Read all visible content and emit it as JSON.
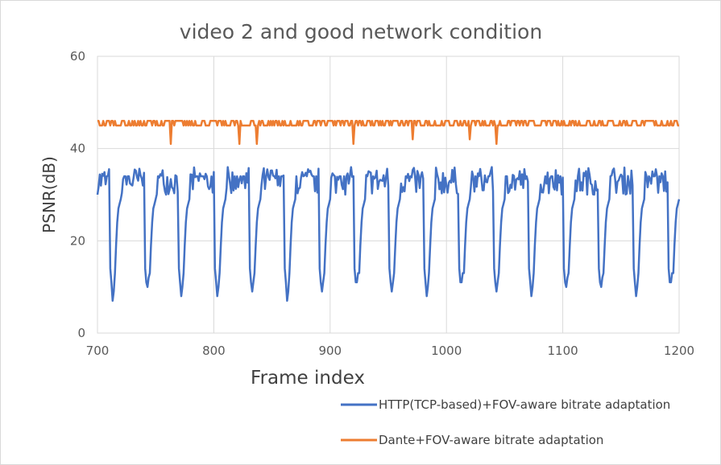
{
  "chart_data": {
    "type": "line",
    "title": "video 2 and good network condition",
    "xlabel": "Frame index",
    "ylabel": "PSNR(dB)",
    "xlim": [
      700,
      1200
    ],
    "ylim": [
      0,
      60
    ],
    "xticks": [
      700,
      800,
      900,
      1000,
      1100,
      1200
    ],
    "yticks": [
      0,
      20,
      40,
      60
    ],
    "grid": true,
    "legend_position": "bottom-right",
    "series": [
      {
        "name": "HTTP(TCP-based)+FOV-aware bitrate adaptation",
        "color": "#4472c4",
        "dip_x": [
          713,
          743,
          772,
          803,
          833,
          863,
          893,
          923,
          953,
          983,
          1013,
          1043,
          1073,
          1103,
          1133,
          1163,
          1193
        ],
        "dip_y": [
          7,
          10,
          8,
          8,
          9,
          7,
          9,
          11,
          9,
          8,
          11,
          9,
          8,
          10,
          10,
          8,
          11
        ],
        "range": [
          26,
          34
        ]
      },
      {
        "name": "Dante+FOV-aware bitrate adaptation",
        "color": "#ed7d31",
        "dip_x": [
          763,
          822,
          837,
          920,
          971,
          1020,
          1043
        ],
        "dip_y": [
          41,
          41,
          41,
          41,
          42,
          42,
          41
        ],
        "range": [
          45,
          46
        ]
      }
    ]
  }
}
